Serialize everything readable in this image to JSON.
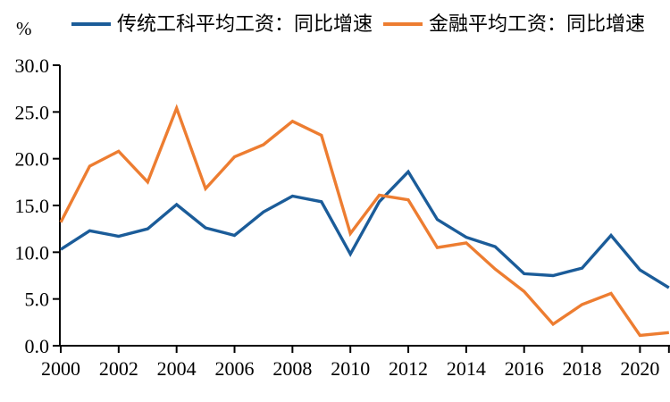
{
  "y_axis_unit": "%",
  "chart_data": {
    "type": "line",
    "title": "",
    "xlabel": "",
    "ylabel": "%",
    "grid": false,
    "legend_position": "top",
    "axis_color": "#000000",
    "ylim": [
      0,
      30
    ],
    "x": [
      2000,
      2001,
      2002,
      2003,
      2004,
      2005,
      2006,
      2007,
      2008,
      2009,
      2010,
      2011,
      2012,
      2013,
      2014,
      2015,
      2016,
      2017,
      2018,
      2019,
      2020,
      2021
    ],
    "series": [
      {
        "name": "传统工科平均工资：同比增速",
        "color": "#1B5C99",
        "values": [
          10.3,
          12.3,
          11.7,
          12.5,
          15.1,
          12.6,
          11.8,
          14.3,
          16.0,
          15.4,
          9.8,
          15.4,
          18.6,
          13.5,
          11.6,
          10.6,
          7.7,
          7.5,
          8.3,
          11.8,
          8.1,
          6.2
        ]
      },
      {
        "name": "金融平均工资：同比增速",
        "color": "#ED7D31",
        "values": [
          13.2,
          19.2,
          20.8,
          17.5,
          25.4,
          16.8,
          20.2,
          21.5,
          24.0,
          22.5,
          12.0,
          16.1,
          15.6,
          10.5,
          11.0,
          8.2,
          5.8,
          2.3,
          4.4,
          5.6,
          1.1,
          1.4
        ]
      }
    ],
    "y_ticks": [
      {
        "value": 0,
        "label": "0.0"
      },
      {
        "value": 5,
        "label": "5.0"
      },
      {
        "value": 10,
        "label": "10.0"
      },
      {
        "value": 15,
        "label": "15.0"
      },
      {
        "value": 20,
        "label": "20.0"
      },
      {
        "value": 25,
        "label": "25.0"
      },
      {
        "value": 30,
        "label": "30.0"
      }
    ],
    "x_ticks": [
      {
        "year": 2000,
        "label": "2000"
      },
      {
        "year": 2002,
        "label": "2002"
      },
      {
        "year": 2004,
        "label": "2004"
      },
      {
        "year": 2006,
        "label": "2006"
      },
      {
        "year": 2008,
        "label": "2008"
      },
      {
        "year": 2010,
        "label": "2010"
      },
      {
        "year": 2012,
        "label": "2012"
      },
      {
        "year": 2014,
        "label": "2014"
      },
      {
        "year": 2016,
        "label": "2016"
      },
      {
        "year": 2018,
        "label": "2018"
      },
      {
        "year": 2020,
        "label": "2020"
      },
      {
        "year": 2021,
        "label": ""
      }
    ]
  }
}
